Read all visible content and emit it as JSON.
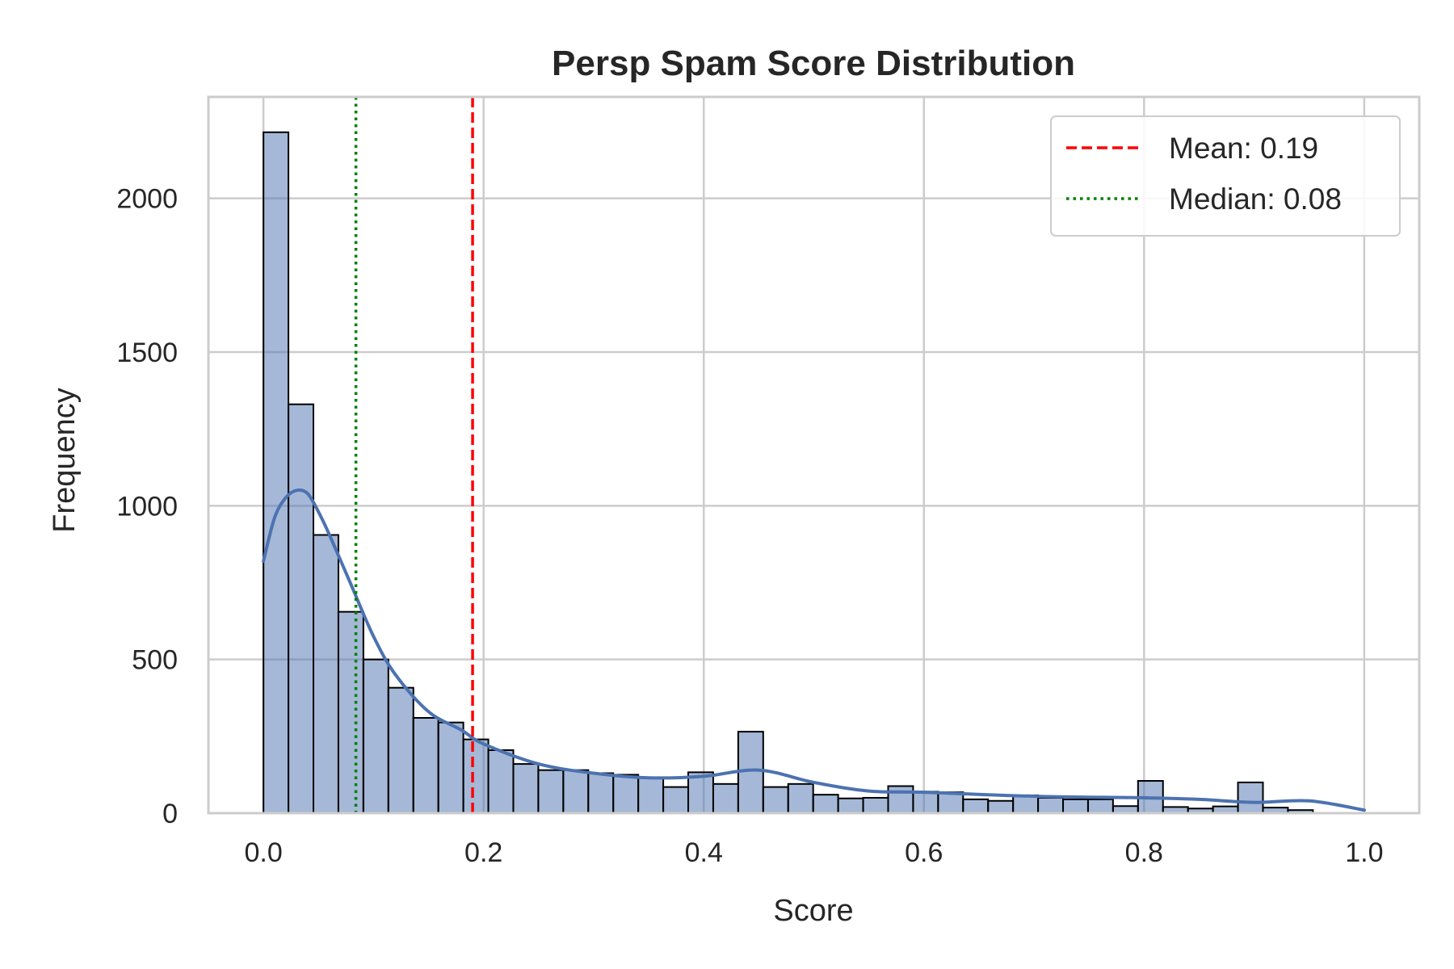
{
  "chart_data": {
    "type": "bar",
    "title": "Persp Spam Score Distribution",
    "xlabel": "Score",
    "ylabel": "Frequency",
    "xlim": [
      -0.05,
      1.05
    ],
    "ylim": [
      0,
      2330
    ],
    "xticks": [
      0.0,
      0.2,
      0.4,
      0.6,
      0.8,
      1.0
    ],
    "xtick_labels": [
      "0.0",
      "0.2",
      "0.4",
      "0.6",
      "0.8",
      "1.0"
    ],
    "yticks": [
      0,
      500,
      1000,
      1500,
      2000
    ],
    "ytick_labels": [
      "0",
      "500",
      "1000",
      "1500",
      "2000"
    ],
    "grid": true,
    "bar_color": "#4c72b0",
    "kde_color": "#4c72b0",
    "bin_width": 0.0227,
    "bin_start": 0.0,
    "histogram": [
      2215,
      1330,
      905,
      655,
      500,
      408,
      310,
      295,
      240,
      205,
      160,
      140,
      140,
      130,
      125,
      115,
      85,
      133,
      95,
      265,
      85,
      95,
      60,
      48,
      50,
      88,
      70,
      68,
      45,
      40,
      58,
      50,
      45,
      45,
      23,
      105,
      20,
      15,
      22,
      100,
      18,
      10
    ],
    "kde": {
      "x": [
        0.0,
        0.01,
        0.02,
        0.03,
        0.04,
        0.05,
        0.06,
        0.08,
        0.1,
        0.12,
        0.15,
        0.18,
        0.2,
        0.25,
        0.3,
        0.35,
        0.4,
        0.45,
        0.5,
        0.55,
        0.6,
        0.7,
        0.8,
        0.85,
        0.9,
        0.95,
        1.0
      ],
      "y": [
        820,
        960,
        1025,
        1050,
        1040,
        980,
        905,
        740,
        575,
        450,
        330,
        270,
        225,
        160,
        130,
        115,
        120,
        140,
        100,
        72,
        68,
        55,
        50,
        45,
        35,
        40,
        10
      ]
    },
    "mean_line": {
      "x": 0.19,
      "color": "#ff0000",
      "style": "dashed"
    },
    "median_line": {
      "x": 0.084,
      "color": "#008000",
      "style": "dotted"
    },
    "legend": {
      "placement": "top-right",
      "entries": [
        {
          "label": "Mean: 0.19",
          "color": "#ff0000",
          "style": "dashed"
        },
        {
          "label": "Median: 0.08",
          "color": "#008000",
          "style": "dotted"
        }
      ]
    }
  }
}
